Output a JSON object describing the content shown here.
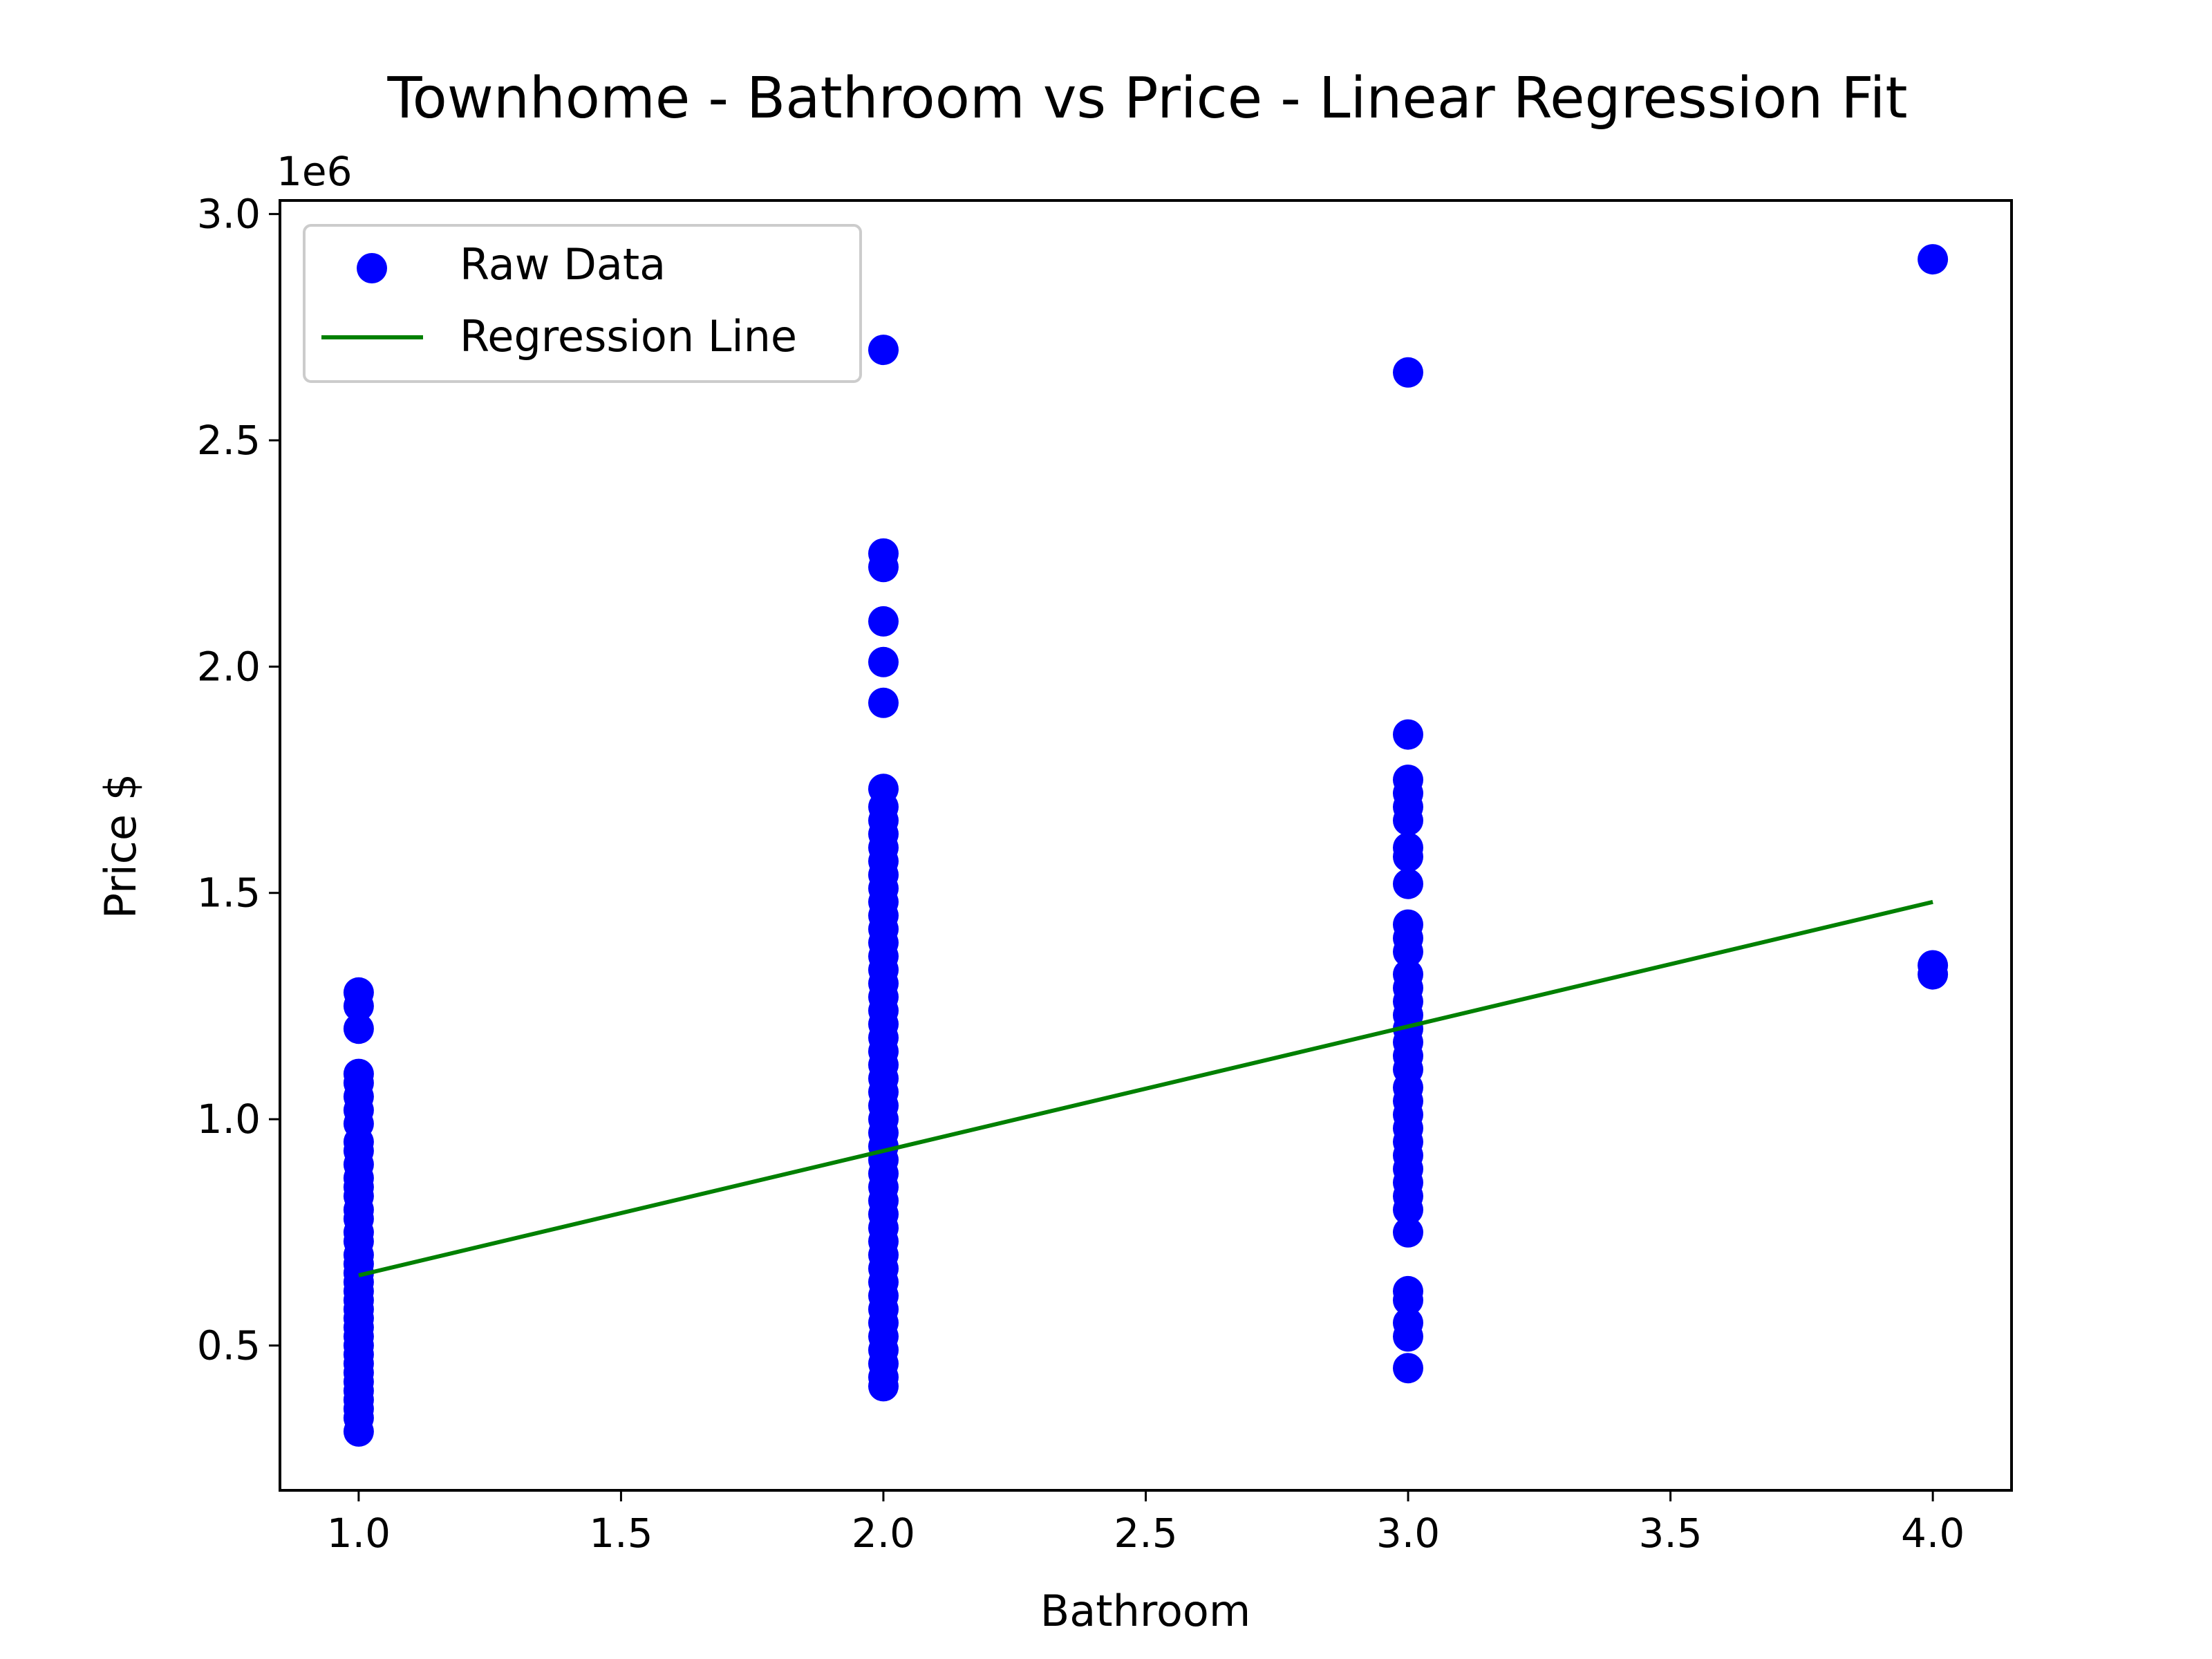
{
  "chart_data": {
    "type": "scatter",
    "title": "Townhome - Bathroom vs Price - Linear Regression Fit",
    "xlabel": "Bathroom",
    "ylabel": "Price $",
    "y_offset_label": "1e6",
    "xlim": [
      0.85,
      4.15
    ],
    "ylim": [
      0.18,
      3.03
    ],
    "y_scale_note": "values in millions (1e6)",
    "x_ticks": [
      1.0,
      1.5,
      2.0,
      2.5,
      3.0,
      3.5,
      4.0
    ],
    "x_tick_labels": [
      "1.0",
      "1.5",
      "2.0",
      "2.5",
      "3.0",
      "3.5",
      "4.0"
    ],
    "y_ticks": [
      0.5,
      1.0,
      1.5,
      2.0,
      2.5,
      3.0
    ],
    "y_tick_labels": [
      "0.5",
      "1.0",
      "1.5",
      "2.0",
      "2.5",
      "3.0"
    ],
    "grid": false,
    "legend": {
      "placement": "top-left",
      "entries": [
        "Raw Data",
        "Regression Line"
      ]
    },
    "colors": {
      "points": "#0000ff",
      "line": "#008000"
    },
    "series": [
      {
        "name": "Raw Data",
        "type": "scatter",
        "points": [
          {
            "x": 1,
            "y": 1.28
          },
          {
            "x": 1,
            "y": 1.25
          },
          {
            "x": 1,
            "y": 1.2
          },
          {
            "x": 1,
            "y": 1.1
          },
          {
            "x": 1,
            "y": 1.08
          },
          {
            "x": 1,
            "y": 1.05
          },
          {
            "x": 1,
            "y": 1.02
          },
          {
            "x": 1,
            "y": 0.99
          },
          {
            "x": 1,
            "y": 0.95
          },
          {
            "x": 1,
            "y": 0.93
          },
          {
            "x": 1,
            "y": 0.9
          },
          {
            "x": 1,
            "y": 0.87
          },
          {
            "x": 1,
            "y": 0.85
          },
          {
            "x": 1,
            "y": 0.83
          },
          {
            "x": 1,
            "y": 0.8
          },
          {
            "x": 1,
            "y": 0.78
          },
          {
            "x": 1,
            "y": 0.75
          },
          {
            "x": 1,
            "y": 0.73
          },
          {
            "x": 1,
            "y": 0.7
          },
          {
            "x": 1,
            "y": 0.68
          },
          {
            "x": 1,
            "y": 0.66
          },
          {
            "x": 1,
            "y": 0.64
          },
          {
            "x": 1,
            "y": 0.62
          },
          {
            "x": 1,
            "y": 0.6
          },
          {
            "x": 1,
            "y": 0.58
          },
          {
            "x": 1,
            "y": 0.56
          },
          {
            "x": 1,
            "y": 0.54
          },
          {
            "x": 1,
            "y": 0.52
          },
          {
            "x": 1,
            "y": 0.5
          },
          {
            "x": 1,
            "y": 0.48
          },
          {
            "x": 1,
            "y": 0.46
          },
          {
            "x": 1,
            "y": 0.44
          },
          {
            "x": 1,
            "y": 0.42
          },
          {
            "x": 1,
            "y": 0.4
          },
          {
            "x": 1,
            "y": 0.38
          },
          {
            "x": 1,
            "y": 0.36
          },
          {
            "x": 1,
            "y": 0.34
          },
          {
            "x": 1,
            "y": 0.31
          },
          {
            "x": 2,
            "y": 2.7
          },
          {
            "x": 2,
            "y": 2.25
          },
          {
            "x": 2,
            "y": 2.22
          },
          {
            "x": 2,
            "y": 2.1
          },
          {
            "x": 2,
            "y": 2.01
          },
          {
            "x": 2,
            "y": 1.92
          },
          {
            "x": 2,
            "y": 1.73
          },
          {
            "x": 2,
            "y": 1.69
          },
          {
            "x": 2,
            "y": 1.66
          },
          {
            "x": 2,
            "y": 1.63
          },
          {
            "x": 2,
            "y": 1.6
          },
          {
            "x": 2,
            "y": 1.57
          },
          {
            "x": 2,
            "y": 1.54
          },
          {
            "x": 2,
            "y": 1.51
          },
          {
            "x": 2,
            "y": 1.48
          },
          {
            "x": 2,
            "y": 1.45
          },
          {
            "x": 2,
            "y": 1.42
          },
          {
            "x": 2,
            "y": 1.39
          },
          {
            "x": 2,
            "y": 1.36
          },
          {
            "x": 2,
            "y": 1.33
          },
          {
            "x": 2,
            "y": 1.3
          },
          {
            "x": 2,
            "y": 1.27
          },
          {
            "x": 2,
            "y": 1.24
          },
          {
            "x": 2,
            "y": 1.21
          },
          {
            "x": 2,
            "y": 1.18
          },
          {
            "x": 2,
            "y": 1.15
          },
          {
            "x": 2,
            "y": 1.12
          },
          {
            "x": 2,
            "y": 1.09
          },
          {
            "x": 2,
            "y": 1.06
          },
          {
            "x": 2,
            "y": 1.03
          },
          {
            "x": 2,
            "y": 1.0
          },
          {
            "x": 2,
            "y": 0.97
          },
          {
            "x": 2,
            "y": 0.94
          },
          {
            "x": 2,
            "y": 0.91
          },
          {
            "x": 2,
            "y": 0.88
          },
          {
            "x": 2,
            "y": 0.85
          },
          {
            "x": 2,
            "y": 0.82
          },
          {
            "x": 2,
            "y": 0.79
          },
          {
            "x": 2,
            "y": 0.76
          },
          {
            "x": 2,
            "y": 0.73
          },
          {
            "x": 2,
            "y": 0.7
          },
          {
            "x": 2,
            "y": 0.67
          },
          {
            "x": 2,
            "y": 0.64
          },
          {
            "x": 2,
            "y": 0.61
          },
          {
            "x": 2,
            "y": 0.58
          },
          {
            "x": 2,
            "y": 0.55
          },
          {
            "x": 2,
            "y": 0.52
          },
          {
            "x": 2,
            "y": 0.49
          },
          {
            "x": 2,
            "y": 0.46
          },
          {
            "x": 2,
            "y": 0.43
          },
          {
            "x": 2,
            "y": 0.41
          },
          {
            "x": 3,
            "y": 2.65
          },
          {
            "x": 3,
            "y": 1.85
          },
          {
            "x": 3,
            "y": 1.75
          },
          {
            "x": 3,
            "y": 1.72
          },
          {
            "x": 3,
            "y": 1.69
          },
          {
            "x": 3,
            "y": 1.66
          },
          {
            "x": 3,
            "y": 1.6
          },
          {
            "x": 3,
            "y": 1.58
          },
          {
            "x": 3,
            "y": 1.52
          },
          {
            "x": 3,
            "y": 1.43
          },
          {
            "x": 3,
            "y": 1.4
          },
          {
            "x": 3,
            "y": 1.37
          },
          {
            "x": 3,
            "y": 1.32
          },
          {
            "x": 3,
            "y": 1.29
          },
          {
            "x": 3,
            "y": 1.26
          },
          {
            "x": 3,
            "y": 1.23
          },
          {
            "x": 3,
            "y": 1.2
          },
          {
            "x": 3,
            "y": 1.17
          },
          {
            "x": 3,
            "y": 1.14
          },
          {
            "x": 3,
            "y": 1.11
          },
          {
            "x": 3,
            "y": 1.07
          },
          {
            "x": 3,
            "y": 1.04
          },
          {
            "x": 3,
            "y": 1.01
          },
          {
            "x": 3,
            "y": 0.98
          },
          {
            "x": 3,
            "y": 0.95
          },
          {
            "x": 3,
            "y": 0.92
          },
          {
            "x": 3,
            "y": 0.89
          },
          {
            "x": 3,
            "y": 0.86
          },
          {
            "x": 3,
            "y": 0.83
          },
          {
            "x": 3,
            "y": 0.8
          },
          {
            "x": 3,
            "y": 0.75
          },
          {
            "x": 3,
            "y": 0.62
          },
          {
            "x": 3,
            "y": 0.6
          },
          {
            "x": 3,
            "y": 0.55
          },
          {
            "x": 3,
            "y": 0.52
          },
          {
            "x": 3,
            "y": 0.45
          },
          {
            "x": 4,
            "y": 2.9
          },
          {
            "x": 4,
            "y": 1.34
          },
          {
            "x": 4,
            "y": 1.32
          }
        ]
      },
      {
        "name": "Regression Line",
        "type": "line",
        "points": [
          {
            "x": 1,
            "y": 0.655
          },
          {
            "x": 4,
            "y": 1.48
          }
        ]
      }
    ]
  }
}
